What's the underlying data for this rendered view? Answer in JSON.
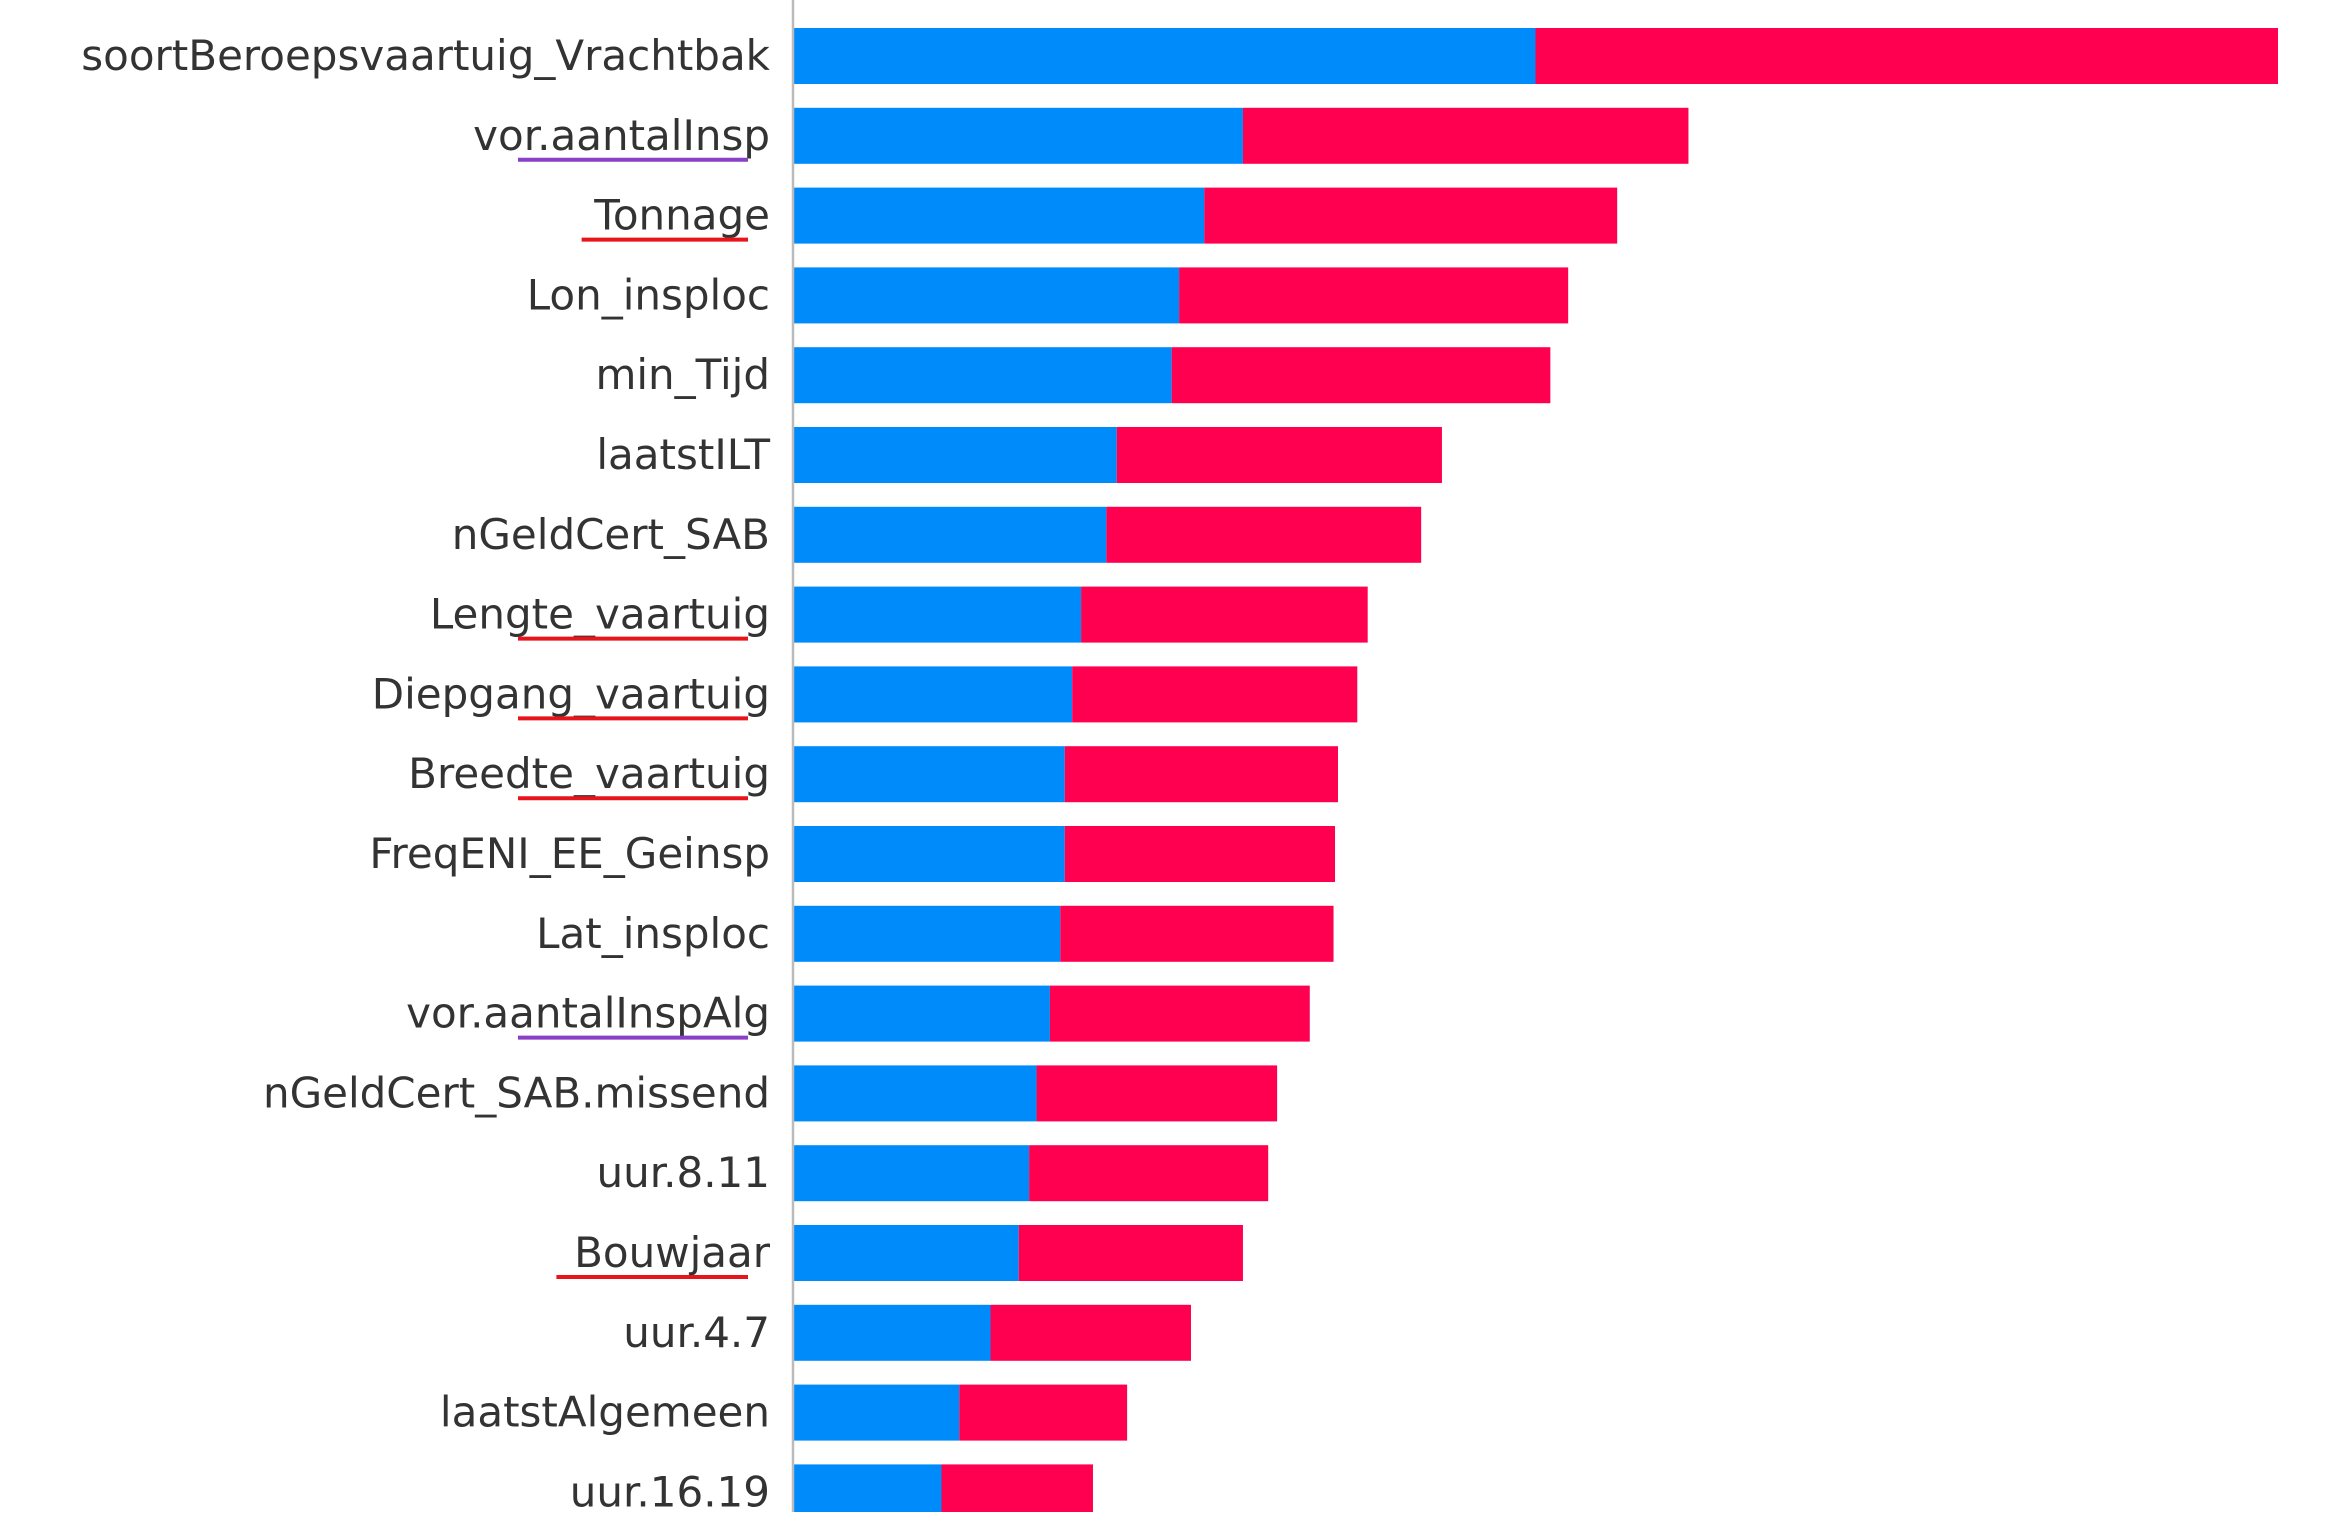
{
  "chart_data": {
    "type": "bar",
    "orientation": "horizontal",
    "stacked": true,
    "title": "",
    "xlabel": "",
    "ylabel": "",
    "xlim": [
      0,
      1
    ],
    "categories": [
      "soortBeroepsvaartuig_Vrachtbak",
      "vor.aantalInsp",
      "Tonnage",
      "Lon_insploc",
      "min_Tijd",
      "laatstILT",
      "nGeldCert_SAB",
      "Lengte_vaartuig",
      "Diepgang_vaartuig",
      "Breedte_vaartuig",
      "FreqENI_EE_Geinsp",
      "Lat_insploc",
      "vor.aantalInspAlg",
      "nGeldCert_SAB.missend",
      "uur.8.11",
      "Bouwjaar",
      "uur.4.7",
      "laatstAlgemeen",
      "uur.16.19"
    ],
    "series": [
      {
        "color": "#008bfb",
        "values": [
          0.5,
          0.303,
          0.277,
          0.26,
          0.255,
          0.218,
          0.211,
          0.194,
          0.188,
          0.183,
          0.183,
          0.18,
          0.173,
          0.164,
          0.159,
          0.152,
          0.133,
          0.112,
          0.1
        ]
      },
      {
        "color": "#ff0051",
        "values": [
          0.5,
          0.3,
          0.278,
          0.262,
          0.255,
          0.219,
          0.212,
          0.193,
          0.192,
          0.184,
          0.182,
          0.184,
          0.175,
          0.162,
          0.161,
          0.151,
          0.135,
          0.113,
          0.102
        ]
      }
    ],
    "underlines": [
      {
        "category": "vor.aantalInsp",
        "color": "#8a3fc7"
      },
      {
        "category": "Tonnage",
        "color": "#e8141c"
      },
      {
        "category": "Lengte_vaartuig",
        "color": "#e8141c"
      },
      {
        "category": "Diepgang_vaartuig",
        "color": "#e8141c"
      },
      {
        "category": "Breedte_vaartuig",
        "color": "#e8141c"
      },
      {
        "category": "vor.aantalInspAlg",
        "color": "#8a3fc7"
      },
      {
        "category": "Bouwjaar",
        "color": "#e8141c"
      }
    ],
    "grid": false,
    "legend": "none"
  }
}
